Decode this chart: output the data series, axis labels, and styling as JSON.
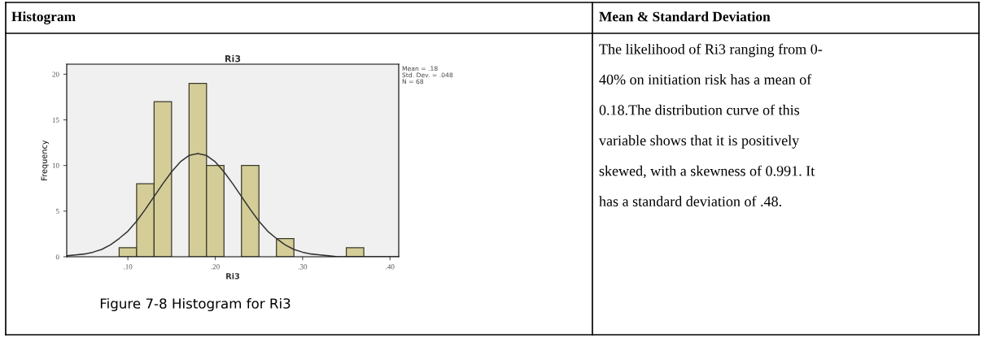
{
  "chart_data": [
    {
      "type": "histogram",
      "title": "Ri3",
      "xlabel": "Ri3",
      "ylabel": "Frequency",
      "color": "#d4cd98",
      "bins": [
        0.09,
        0.11,
        0.13,
        0.15,
        0.17,
        0.19,
        0.21,
        0.23,
        0.25,
        0.27,
        0.29,
        0.31,
        0.33,
        0.35,
        0.37
      ],
      "values": [
        1,
        8,
        17,
        0,
        19,
        10,
        0,
        10,
        0,
        2,
        0,
        0,
        0,
        1
      ],
      "series": [
        {
          "type": "line",
          "color": "#333333",
          "x": [
            0.03,
            0.04,
            0.05,
            0.06,
            0.07,
            0.08,
            0.09,
            0.1,
            0.11,
            0.12,
            0.13,
            0.14,
            0.15,
            0.16,
            0.17,
            0.18,
            0.19,
            0.2,
            0.21,
            0.22,
            0.23,
            0.24,
            0.25,
            0.26,
            0.27,
            0.28,
            0.29,
            0.3,
            0.31,
            0.32,
            0.33,
            0.34,
            0.35,
            0.36,
            0.37,
            0.38,
            0.39,
            0.4,
            0.41
          ],
          "values": [
            0.1,
            0.2,
            0.3,
            0.5,
            0.8,
            1.3,
            2,
            2.8,
            3.9,
            5.2,
            6.6,
            8,
            9.3,
            10.4,
            11.1,
            11.3,
            11.1,
            10.4,
            9.3,
            8,
            6.6,
            5.2,
            3.9,
            2.8,
            2,
            1.3,
            0.8,
            0.5,
            0.3,
            0.2,
            0.1,
            0,
            0,
            0,
            0,
            0,
            0,
            0,
            0
          ]
        }
      ],
      "xlim": [
        0.03,
        0.41
      ],
      "xticks": [
        {
          "value": 0.1,
          "label": ".10"
        },
        {
          "value": 0.2,
          "label": ".20"
        },
        {
          "value": 0.3,
          "label": ".30"
        },
        {
          "value": 0.4,
          "label": ".40"
        }
      ],
      "ylim": [
        0,
        21.1
      ],
      "yticks": [
        0,
        5,
        10,
        15,
        20
      ],
      "grid": false,
      "annotations": [
        "Histogram",
        "Mean = .18",
        "Std. Dev. = .048",
        "N = 68",
        "Figure 7-8 Histogram for Ri3"
      ]
    },
    {
      "type": "other",
      "title": "Mean & Standard Deviation",
      "annotations": [
        "The likelihood of Ri3 ranging from 0-",
        "40% on initiation risk has a mean of",
        "0.18.The distribution curve of this",
        "variable shows that it is positively",
        "skewed, with a skewness of 0.991. It",
        "has a standard deviation of .48."
      ]
    }
  ]
}
